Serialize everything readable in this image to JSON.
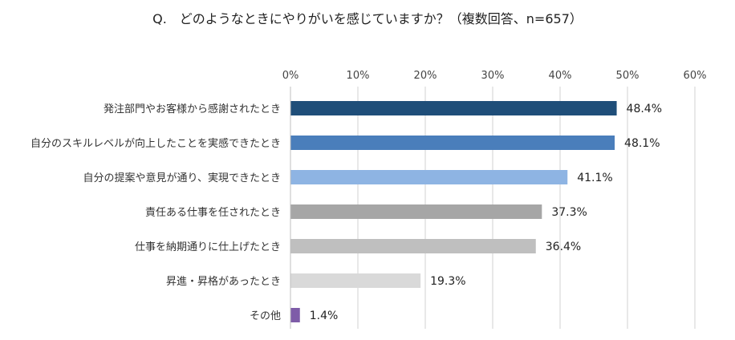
{
  "chart_data": {
    "type": "bar",
    "orientation": "horizontal",
    "title": "Q.　どのようなときにやりがいを感じていますか？（複数回答、n=657）",
    "x_ticks": [
      "0%",
      "10%",
      "20%",
      "30%",
      "40%",
      "50%",
      "60%"
    ],
    "xlim": [
      0,
      60
    ],
    "grid": true,
    "categories": [
      "発注部門やお客様から感謝されたとき",
      "自分のスキルレベルが向上したことを実感できたとき",
      "自分の提案や意見が通り、実現できたとき",
      "責任ある仕事を任されたとき",
      "仕事を納期通りに仕上げたとき",
      "昇進・昇格があったとき",
      "その他"
    ],
    "values": [
      48.4,
      48.1,
      41.1,
      37.3,
      36.4,
      19.3,
      1.4
    ],
    "value_labels": [
      "48.4%",
      "48.1%",
      "41.1%",
      "37.3%",
      "36.4%",
      "19.3%",
      "1.4%"
    ],
    "colors": [
      "#1f4e79",
      "#4a7ebb",
      "#8eb4e3",
      "#a6a6a6",
      "#bfbfbf",
      "#d9d9d9",
      "#7e5ca8"
    ]
  }
}
